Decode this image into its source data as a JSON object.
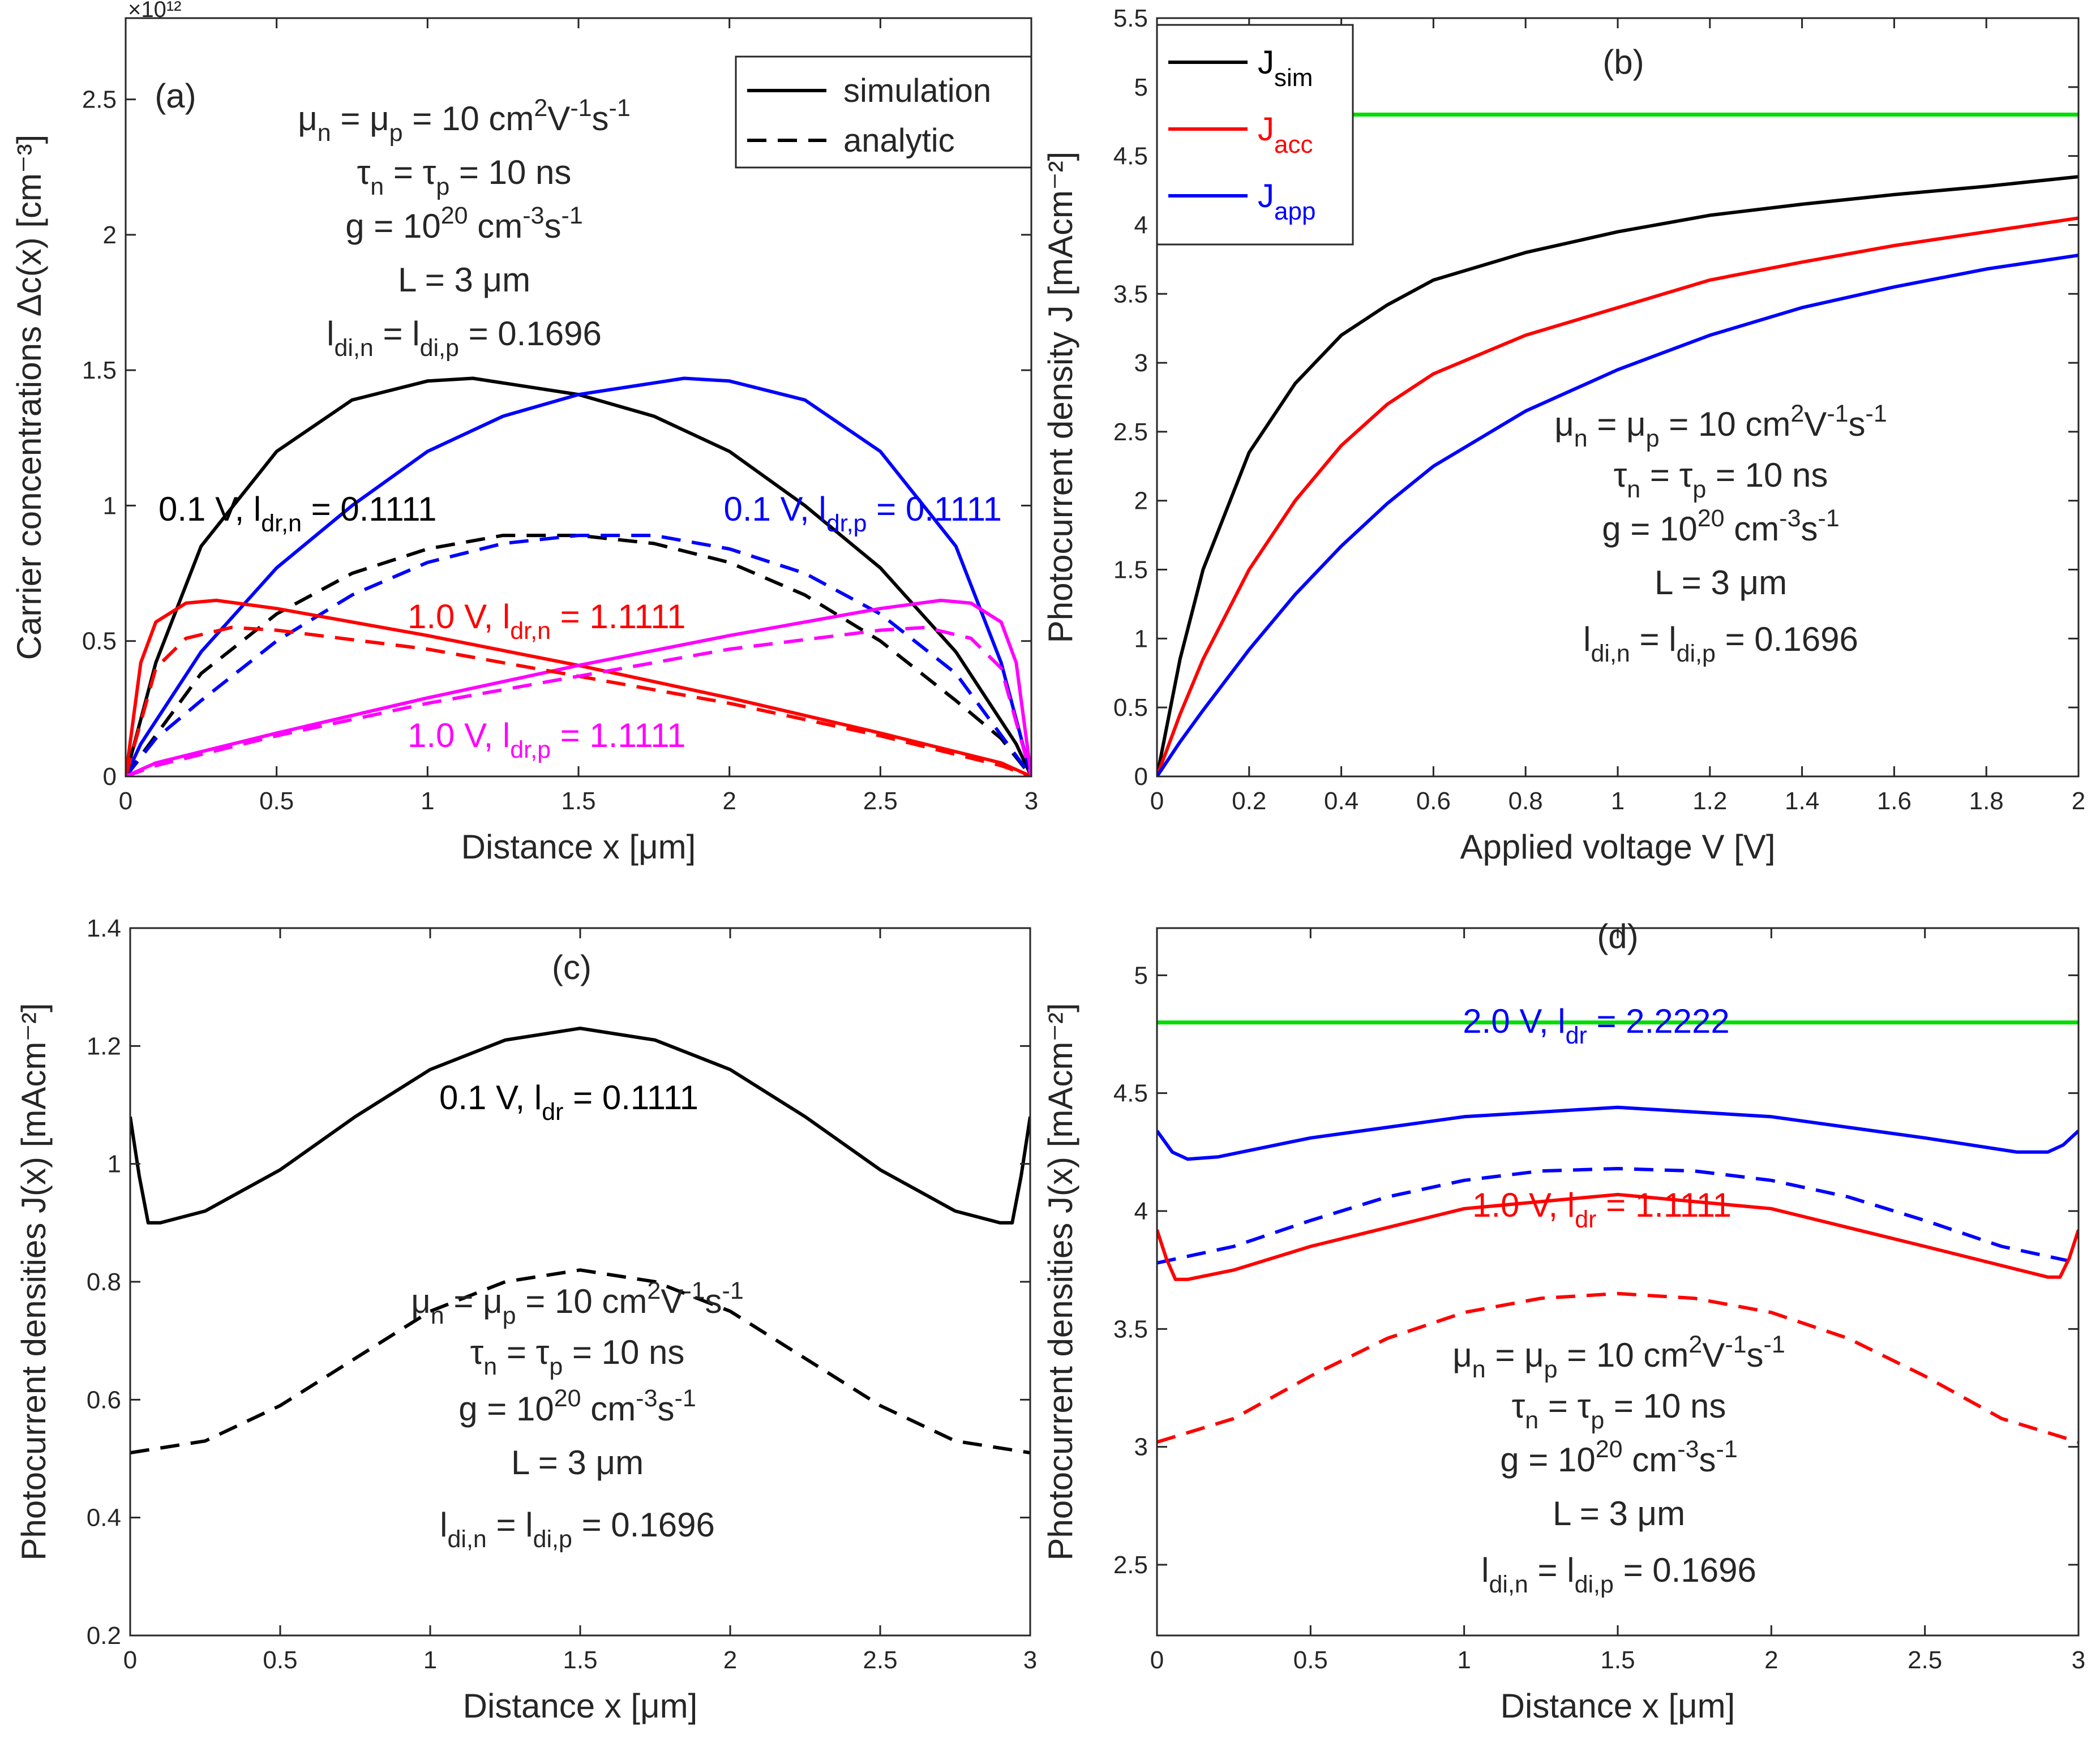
{
  "chart_data": [
    {
      "id": "a",
      "type": "line",
      "panel_label": "(a)",
      "xlabel": "Distance x [μm]",
      "ylabel": "Carrier concentrations Δc(x) [cm⁻³]",
      "y_multiplier": "×10¹²",
      "xlim": [
        0,
        3
      ],
      "ylim": [
        0,
        2.8
      ],
      "xticks": [
        0,
        0.5,
        1,
        1.5,
        2,
        2.5,
        3
      ],
      "yticks": [
        0,
        0.5,
        1,
        1.5,
        2,
        2.5
      ],
      "xtick_labels": [
        "0",
        "0.5",
        "1",
        "1.5",
        "2",
        "2.5",
        "3"
      ],
      "ytick_labels": [
        "0",
        "0.5",
        "1",
        "1.5",
        "2",
        "2.5"
      ],
      "legend": [
        {
          "label": "simulation",
          "style": "solid",
          "color": "#000000"
        },
        {
          "label": "analytic",
          "style": "dashed",
          "color": "#000000"
        }
      ],
      "legend_position": "top-right",
      "params": {
        "mobility": "μn = μp = 10 cm²V⁻¹s⁻¹",
        "lifetime": "τn = τp = 10 ns",
        "generation": "g = 10²⁰ cm⁻³s⁻¹",
        "length": "L = 3 μm",
        "ldi": "ldi,n = ldi,p = 0.1696"
      },
      "curve_labels": [
        {
          "text": "0.1 V, ldr,n = 0.1111",
          "color": "#000000"
        },
        {
          "text": "0.1 V, ldr,p = 0.1111",
          "color": "#0000ff"
        },
        {
          "text": "1.0 V, ldr,n = 1.1111",
          "color": "#ff0000"
        },
        {
          "text": "1.0 V, ldr,p = 1.1111",
          "color": "#ff00ff"
        }
      ],
      "series": [
        {
          "name": "0.1 V n simulation",
          "color": "#000000",
          "style": "solid",
          "x": [
            0,
            0.1,
            0.25,
            0.5,
            0.75,
            1.0,
            1.15,
            1.5,
            1.75,
            2.0,
            2.25,
            2.5,
            2.75,
            2.95,
            3.0
          ],
          "y": [
            0,
            0.42,
            0.85,
            1.2,
            1.39,
            1.46,
            1.47,
            1.41,
            1.33,
            1.2,
            1.0,
            0.77,
            0.46,
            0.12,
            0
          ]
        },
        {
          "name": "0.1 V p simulation",
          "color": "#0000ff",
          "style": "solid",
          "x": [
            0,
            0.05,
            0.25,
            0.5,
            0.75,
            1.0,
            1.25,
            1.5,
            1.85,
            2.0,
            2.25,
            2.5,
            2.75,
            2.9,
            3.0
          ],
          "y": [
            0,
            0.12,
            0.46,
            0.77,
            1.0,
            1.2,
            1.33,
            1.41,
            1.47,
            1.46,
            1.39,
            1.2,
            0.85,
            0.42,
            0
          ]
        },
        {
          "name": "0.1 V n analytic",
          "color": "#000000",
          "style": "dashed",
          "x": [
            0,
            0.25,
            0.5,
            0.75,
            1.0,
            1.25,
            1.5,
            1.75,
            2.0,
            2.25,
            2.5,
            2.75,
            2.9,
            3.0
          ],
          "y": [
            0,
            0.38,
            0.6,
            0.75,
            0.84,
            0.89,
            0.89,
            0.86,
            0.79,
            0.67,
            0.5,
            0.28,
            0.14,
            0
          ]
        },
        {
          "name": "0.1 V p analytic",
          "color": "#0000ff",
          "style": "dashed",
          "x": [
            0,
            0.1,
            0.25,
            0.5,
            0.75,
            1.0,
            1.25,
            1.5,
            1.75,
            2.0,
            2.25,
            2.5,
            2.75,
            3.0
          ],
          "y": [
            0,
            0.14,
            0.28,
            0.5,
            0.67,
            0.79,
            0.86,
            0.89,
            0.89,
            0.84,
            0.75,
            0.6,
            0.38,
            0
          ]
        },
        {
          "name": "1.0 V n simulation",
          "color": "#ff0000",
          "style": "solid",
          "x": [
            0,
            0.05,
            0.1,
            0.2,
            0.3,
            0.5,
            1.0,
            1.5,
            2.0,
            2.5,
            2.9,
            3.0
          ],
          "y": [
            0,
            0.42,
            0.57,
            0.64,
            0.65,
            0.62,
            0.52,
            0.41,
            0.29,
            0.16,
            0.05,
            0
          ]
        },
        {
          "name": "1.0 V p simulation",
          "color": "#ff00ff",
          "style": "solid",
          "x": [
            0,
            0.1,
            0.5,
            1.0,
            1.5,
            2.0,
            2.5,
            2.7,
            2.8,
            2.9,
            2.95,
            3.0
          ],
          "y": [
            0,
            0.05,
            0.16,
            0.29,
            0.41,
            0.52,
            0.62,
            0.65,
            0.64,
            0.57,
            0.42,
            0
          ]
        },
        {
          "name": "1.0 V n analytic",
          "color": "#ff0000",
          "style": "dashed",
          "x": [
            0,
            0.1,
            0.2,
            0.35,
            0.5,
            1.0,
            1.5,
            2.0,
            2.5,
            2.9,
            3.0
          ],
          "y": [
            0,
            0.4,
            0.51,
            0.55,
            0.54,
            0.47,
            0.37,
            0.27,
            0.15,
            0.04,
            0
          ]
        },
        {
          "name": "1.0 V p analytic",
          "color": "#ff00ff",
          "style": "dashed",
          "x": [
            0,
            0.1,
            0.5,
            1.0,
            1.5,
            2.0,
            2.5,
            2.65,
            2.8,
            2.9,
            3.0
          ],
          "y": [
            0,
            0.04,
            0.15,
            0.27,
            0.37,
            0.47,
            0.54,
            0.55,
            0.51,
            0.4,
            0
          ]
        }
      ]
    },
    {
      "id": "b",
      "type": "line",
      "panel_label": "(b)",
      "xlabel": "Applied voltage V [V]",
      "ylabel": "Photocurrent density J [mAcm⁻²]",
      "xlim": [
        0,
        2
      ],
      "ylim": [
        0,
        5.5
      ],
      "xticks": [
        0,
        0.2,
        0.4,
        0.6,
        0.8,
        1,
        1.2,
        1.4,
        1.6,
        1.8,
        2
      ],
      "yticks": [
        0,
        0.5,
        1,
        1.5,
        2,
        2.5,
        3,
        3.5,
        4,
        4.5,
        5,
        5.5
      ],
      "xtick_labels": [
        "0",
        "0.2",
        "0.4",
        "0.6",
        "0.8",
        "1",
        "1.2",
        "1.4",
        "1.6",
        "1.8",
        "2"
      ],
      "ytick_labels": [
        "0",
        "0.5",
        "1",
        "1.5",
        "2",
        "2.5",
        "3",
        "3.5",
        "4",
        "4.5",
        "5",
        "5.5"
      ],
      "legend": [
        {
          "label": "J",
          "sub": "sim",
          "style": "solid",
          "color": "#000000"
        },
        {
          "label": "J",
          "sub": "acc",
          "style": "solid",
          "color": "#ff0000"
        },
        {
          "label": "J",
          "sub": "app",
          "style": "solid",
          "color": "#0000ff"
        }
      ],
      "legend_position": "top-left",
      "params": {
        "mobility": "μn = μp = 10 cm²V⁻¹s⁻¹",
        "lifetime": "τn = τp = 10 ns",
        "generation": "g = 10²⁰ cm⁻³s⁻¹",
        "length": "L = 3 μm",
        "ldi": "ldi,n = ldi,p = 0.1696"
      },
      "series": [
        {
          "name": "J_sim",
          "color": "#000000",
          "style": "solid",
          "x": [
            0,
            0.05,
            0.1,
            0.2,
            0.3,
            0.4,
            0.5,
            0.6,
            0.8,
            1.0,
            1.2,
            1.4,
            1.6,
            1.8,
            2.0
          ],
          "y": [
            0,
            0.85,
            1.5,
            2.35,
            2.85,
            3.2,
            3.42,
            3.6,
            3.8,
            3.95,
            4.07,
            4.15,
            4.22,
            4.28,
            4.35
          ]
        },
        {
          "name": "J_acc",
          "color": "#ff0000",
          "style": "solid",
          "x": [
            0,
            0.05,
            0.1,
            0.2,
            0.3,
            0.4,
            0.5,
            0.6,
            0.8,
            1.0,
            1.2,
            1.4,
            1.6,
            1.8,
            2.0
          ],
          "y": [
            0,
            0.45,
            0.85,
            1.5,
            2.0,
            2.4,
            2.7,
            2.92,
            3.2,
            3.4,
            3.6,
            3.73,
            3.85,
            3.95,
            4.05
          ]
        },
        {
          "name": "J_app",
          "color": "#0000ff",
          "style": "solid",
          "x": [
            0,
            0.05,
            0.1,
            0.2,
            0.3,
            0.4,
            0.5,
            0.6,
            0.8,
            1.0,
            1.2,
            1.4,
            1.6,
            1.8,
            2.0
          ],
          "y": [
            0,
            0.25,
            0.48,
            0.92,
            1.32,
            1.67,
            1.98,
            2.25,
            2.65,
            2.95,
            3.2,
            3.4,
            3.55,
            3.68,
            3.78
          ]
        },
        {
          "name": "limit",
          "color": "#00dd00",
          "style": "solid",
          "x": [
            0,
            2
          ],
          "y": [
            4.8,
            4.8
          ]
        }
      ]
    },
    {
      "id": "c",
      "type": "line",
      "panel_label": "(c)",
      "xlabel": "Distance x [μm]",
      "ylabel": "Photocurrent densities J(x) [mAcm⁻²]",
      "xlim": [
        0,
        3
      ],
      "ylim": [
        0.2,
        1.4
      ],
      "xticks": [
        0,
        0.5,
        1,
        1.5,
        2,
        2.5,
        3
      ],
      "yticks": [
        0.2,
        0.4,
        0.6,
        0.8,
        1,
        1.2,
        1.4
      ],
      "xtick_labels": [
        "0",
        "0.5",
        "1",
        "1.5",
        "2",
        "2.5",
        "3"
      ],
      "ytick_labels": [
        "0.2",
        "0.4",
        "0.6",
        "0.8",
        "1",
        "1.2",
        "1.4"
      ],
      "params": {
        "mobility": "μn = μp = 10 cm²V⁻¹s⁻¹",
        "lifetime": "τn = τp = 10 ns",
        "generation": "g = 10²⁰ cm⁻³s⁻¹",
        "length": "L = 3 μm",
        "ldi": "ldi,n = ldi,p = 0.1696"
      },
      "curve_labels": [
        {
          "text": "0.1 V, ldr = 0.1111",
          "color": "#000000"
        }
      ],
      "series": [
        {
          "name": "0.1 V simulation",
          "color": "#000000",
          "style": "solid",
          "x": [
            0,
            0.03,
            0.06,
            0.1,
            0.25,
            0.5,
            0.75,
            1.0,
            1.25,
            1.5,
            1.75,
            2.0,
            2.25,
            2.5,
            2.75,
            2.9,
            2.94,
            2.97,
            3.0
          ],
          "y": [
            1.08,
            0.98,
            0.9,
            0.9,
            0.92,
            0.99,
            1.08,
            1.16,
            1.21,
            1.23,
            1.21,
            1.16,
            1.08,
            0.99,
            0.92,
            0.9,
            0.9,
            0.98,
            1.08
          ]
        },
        {
          "name": "0.1 V analytic",
          "color": "#000000",
          "style": "dashed",
          "x": [
            0,
            0.25,
            0.5,
            0.75,
            1.0,
            1.25,
            1.5,
            1.75,
            2.0,
            2.25,
            2.5,
            2.75,
            3.0
          ],
          "y": [
            0.51,
            0.53,
            0.59,
            0.67,
            0.75,
            0.8,
            0.82,
            0.8,
            0.75,
            0.67,
            0.59,
            0.53,
            0.51
          ]
        }
      ]
    },
    {
      "id": "d",
      "type": "line",
      "panel_label": "(d)",
      "xlabel": "Distance x [μm]",
      "ylabel": "Photocurrent densities J(x) [mAcm⁻²]",
      "xlim": [
        0,
        3
      ],
      "ylim": [
        2.2,
        5.2
      ],
      "xticks": [
        0,
        0.5,
        1,
        1.5,
        2,
        2.5,
        3
      ],
      "yticks": [
        2.5,
        3,
        3.5,
        4,
        4.5,
        5
      ],
      "xtick_labels": [
        "0",
        "0.5",
        "1",
        "1.5",
        "2",
        "2.5",
        "3"
      ],
      "ytick_labels": [
        "2.5",
        "3",
        "3.5",
        "4",
        "4.5",
        "5"
      ],
      "params": {
        "mobility": "μn = μp = 10 cm²V⁻¹s⁻¹",
        "lifetime": "τn = τp = 10 ns",
        "generation": "g = 10²⁰ cm⁻³s⁻¹",
        "length": "L = 3 μm",
        "ldi": "ldi,n = ldi,p = 0.1696"
      },
      "curve_labels": [
        {
          "text": "2.0 V, ldr = 2.2222",
          "color": "#0000ff"
        },
        {
          "text": "1.0 V, ldr = 1.1111",
          "color": "#ff0000"
        }
      ],
      "series": [
        {
          "name": "limit",
          "color": "#00dd00",
          "style": "solid",
          "x": [
            0,
            3
          ],
          "y": [
            4.8,
            4.8
          ]
        },
        {
          "name": "2.0 V simulation",
          "color": "#0000ff",
          "style": "solid",
          "x": [
            0,
            0.05,
            0.1,
            0.2,
            0.5,
            1.0,
            1.5,
            2.0,
            2.5,
            2.8,
            2.9,
            2.95,
            3.0
          ],
          "y": [
            4.34,
            4.25,
            4.22,
            4.23,
            4.31,
            4.4,
            4.44,
            4.4,
            4.31,
            4.25,
            4.25,
            4.28,
            4.34
          ]
        },
        {
          "name": "2.0 V analytic",
          "color": "#0000ff",
          "style": "dashed",
          "x": [
            0,
            0.25,
            0.5,
            0.75,
            1.0,
            1.25,
            1.5,
            1.75,
            2.0,
            2.25,
            2.5,
            2.75,
            3.0
          ],
          "y": [
            3.78,
            3.85,
            3.96,
            4.06,
            4.13,
            4.17,
            4.18,
            4.17,
            4.13,
            4.06,
            3.96,
            3.85,
            3.78
          ]
        },
        {
          "name": "1.0 V simulation",
          "color": "#ff0000",
          "style": "solid",
          "x": [
            0,
            0.03,
            0.06,
            0.1,
            0.25,
            0.5,
            1.0,
            1.5,
            2.0,
            2.5,
            2.9,
            2.94,
            2.97,
            3.0
          ],
          "y": [
            3.92,
            3.8,
            3.71,
            3.71,
            3.75,
            3.85,
            4.01,
            4.07,
            4.01,
            3.85,
            3.72,
            3.72,
            3.8,
            3.92
          ]
        },
        {
          "name": "1.0 V analytic",
          "color": "#ff0000",
          "style": "dashed",
          "x": [
            0,
            0.25,
            0.5,
            0.75,
            1.0,
            1.25,
            1.5,
            1.75,
            2.0,
            2.25,
            2.5,
            2.75,
            3.0
          ],
          "y": [
            3.02,
            3.12,
            3.3,
            3.46,
            3.57,
            3.63,
            3.65,
            3.63,
            3.57,
            3.46,
            3.3,
            3.12,
            3.02
          ]
        }
      ]
    }
  ]
}
